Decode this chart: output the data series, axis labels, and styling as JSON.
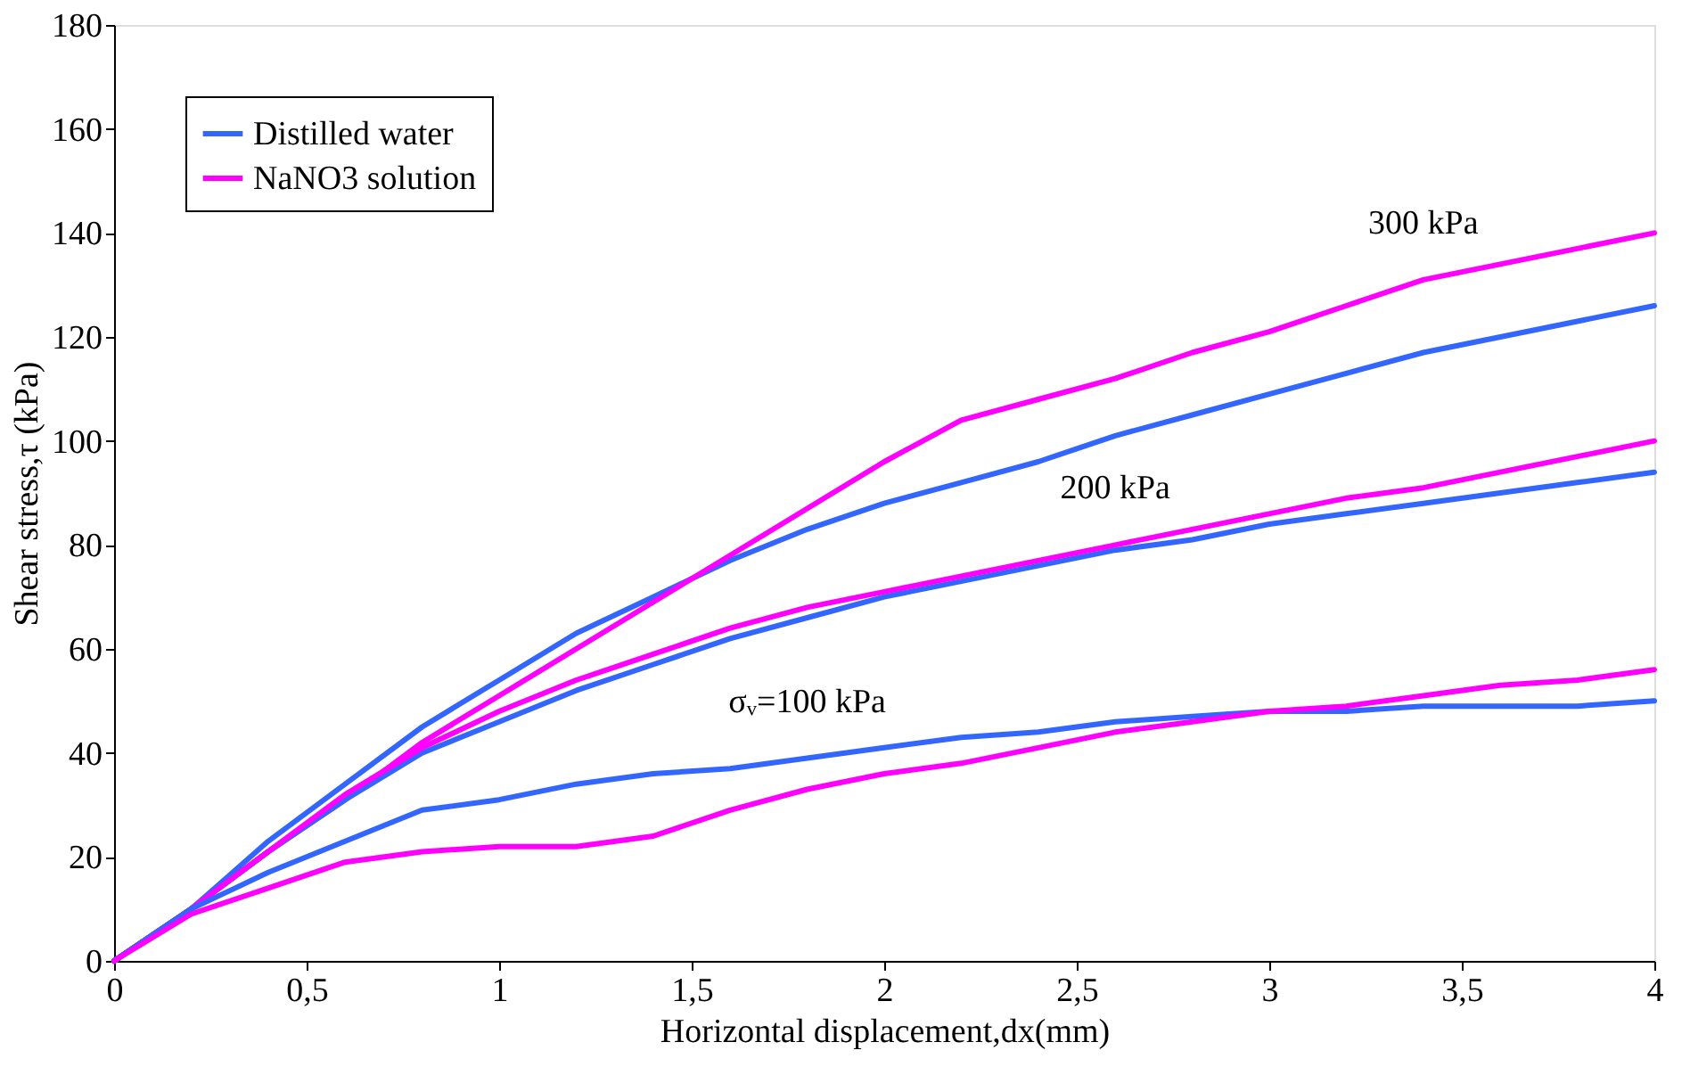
{
  "chart_data": {
    "type": "line",
    "xlabel": "Horizontal displacement,dx(mm)",
    "ylabel": "Shear stress,τ (kPa)",
    "x": [
      0,
      0.2,
      0.4,
      0.6,
      0.8,
      1,
      1.2,
      1.4,
      1.6,
      1.8,
      2,
      2.2,
      2.4,
      2.6,
      2.8,
      3,
      3.2,
      3.4,
      3.6,
      3.8,
      4
    ],
    "series": [
      {
        "name": "Distilled water",
        "color": "#3366ff",
        "values": [
          0,
          10,
          23,
          34,
          45,
          54,
          63,
          70,
          77,
          83,
          88,
          92,
          96,
          101,
          105,
          109,
          113,
          117,
          120,
          123,
          126
        ]
      },
      {
        "name": "NaNO3 solution",
        "color": "#ff00ff",
        "values": [
          0,
          10,
          21,
          31,
          42,
          51,
          60,
          69,
          78,
          87,
          96,
          104,
          108,
          112,
          117,
          121,
          126,
          131,
          134,
          137,
          140
        ]
      },
      {
        "color": "#3366ff",
        "values": [
          0,
          10,
          21,
          31,
          40,
          46,
          52,
          57,
          62,
          66,
          70,
          73,
          76,
          79,
          81,
          84,
          86,
          88,
          90,
          92,
          94
        ]
      },
      {
        "color": "#ff00ff",
        "values": [
          0,
          10,
          21,
          32,
          41,
          48,
          54,
          59,
          64,
          68,
          71,
          74,
          77,
          80,
          83,
          86,
          89,
          91,
          94,
          97,
          100
        ]
      },
      {
        "color": "#3366ff",
        "values": [
          0,
          10,
          17,
          23,
          29,
          31,
          34,
          36,
          37,
          39,
          41,
          43,
          44,
          46,
          47,
          48,
          48,
          49,
          49,
          49,
          50
        ]
      },
      {
        "color": "#ff00ff",
        "values": [
          0,
          9,
          14,
          19,
          21,
          22,
          22,
          24,
          29,
          33,
          36,
          38,
          41,
          44,
          46,
          48,
          49,
          51,
          53,
          54,
          56
        ]
      }
    ],
    "xlim": [
      0,
      4
    ],
    "xticks": [
      0,
      {
        "value": 0.5,
        "label": "0,5"
      },
      1,
      {
        "value": 1.5,
        "label": "1,5"
      },
      2,
      {
        "value": 2.5,
        "label": "2,5"
      },
      3,
      {
        "value": 3.5,
        "label": "3,5"
      },
      4
    ],
    "ylim": [
      0,
      180
    ],
    "yticks": [
      0,
      20,
      40,
      60,
      80,
      100,
      120,
      140,
      160,
      180
    ],
    "annotations": [
      {
        "text": "300 kPa",
        "x": 3.4,
        "y": 131
      },
      {
        "text": "200 kPa",
        "x": 2.6,
        "y": 80
      },
      {
        "text": "σᵥ=100 kPa",
        "x": 1.8,
        "y": 39
      }
    ],
    "grid": false,
    "legend": "top left",
    "marker": "none",
    "line_style": "solid"
  }
}
